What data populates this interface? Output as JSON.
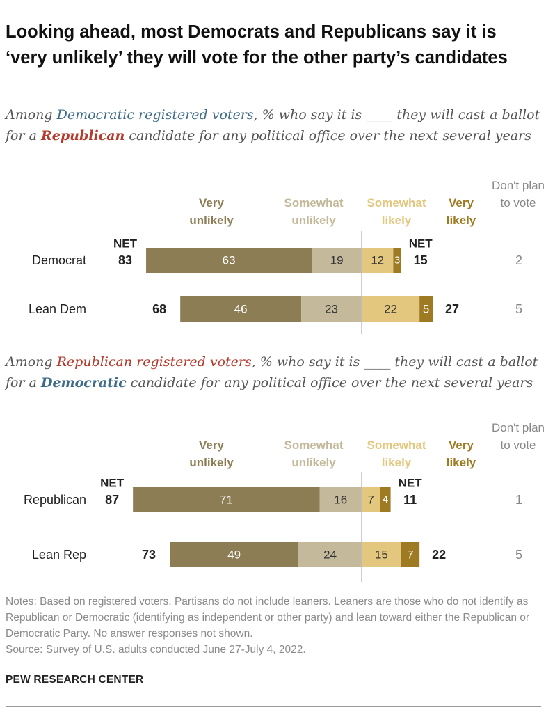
{
  "title": "Looking ahead, most Democrats and Republicans say it is ‘very unlikely’ they will vote for the other party’s candidates",
  "colors": {
    "very_unlikely": "#8c7d55",
    "somewhat_unlikely": "#c4b99a",
    "somewhat_likely": "#e3c77e",
    "very_likely": "#9e7a22",
    "dont_plan": "#888888",
    "dem_text": "#3f6b8a",
    "rep_text": "#b43a2c"
  },
  "panels": [
    {
      "subtitle": {
        "p1": "Among ",
        "highlight": "Democratic registered voters",
        "p2": ", % who say it is ____ they will cast a ballot for a ",
        "party": "Republican",
        "p3": " candidate for any political office over the next several years"
      },
      "headers": {
        "very_unlikely": "Very unlikely",
        "somewhat_unlikely": "Somewhat unlikely",
        "somewhat_likely": "Somewhat likely",
        "very_likely": "Very likely",
        "dont_plan": "Don't plan to vote"
      }
    },
    {
      "subtitle": {
        "p1": "Among ",
        "highlight": "Republican registered voters",
        "p2": ", % who say it is ____ they will cast a ballot for a ",
        "party": "Democratic",
        "p3": " candidate for any political office over the next several years"
      },
      "headers": {
        "very_unlikely": "Very unlikely",
        "somewhat_unlikely": "Somewhat unlikely",
        "somewhat_likely": "Somewhat likely",
        "very_likely": "Very likely",
        "dont_plan": "Don't plan to vote"
      }
    }
  ],
  "chart_data": [
    {
      "type": "bar",
      "orientation": "horizontal-diverging",
      "net_label": "NET",
      "categories": [
        "Democrat",
        "Lean Dem"
      ],
      "series": [
        {
          "name": "Very unlikely",
          "values": [
            63,
            46
          ]
        },
        {
          "name": "Somewhat unlikely",
          "values": [
            19,
            23
          ]
        },
        {
          "name": "Somewhat likely",
          "values": [
            12,
            22
          ]
        },
        {
          "name": "Very likely",
          "values": [
            3,
            5
          ]
        }
      ],
      "net_unlikely": [
        83,
        68
      ],
      "net_likely": [
        15,
        27
      ],
      "dont_plan": [
        2,
        5
      ]
    },
    {
      "type": "bar",
      "orientation": "horizontal-diverging",
      "net_label": "NET",
      "categories": [
        "Republican",
        "Lean Rep"
      ],
      "series": [
        {
          "name": "Very unlikely",
          "values": [
            71,
            49
          ]
        },
        {
          "name": "Somewhat unlikely",
          "values": [
            16,
            24
          ]
        },
        {
          "name": "Somewhat likely",
          "values": [
            7,
            15
          ]
        },
        {
          "name": "Very likely",
          "values": [
            4,
            7
          ]
        }
      ],
      "net_unlikely": [
        87,
        73
      ],
      "net_likely": [
        11,
        22
      ],
      "dont_plan": [
        1,
        5
      ]
    }
  ],
  "notes": "Notes: Based on registered voters. Partisans do not include leaners. Leaners are those who do not identify as Republican or Democratic (identifying as independent or other party) and lean toward either the Republican or Democratic Party. No answer responses not shown.",
  "source": "Source: Survey of U.S. adults conducted June 27-July 4, 2022.",
  "brand": "PEW RESEARCH CENTER"
}
